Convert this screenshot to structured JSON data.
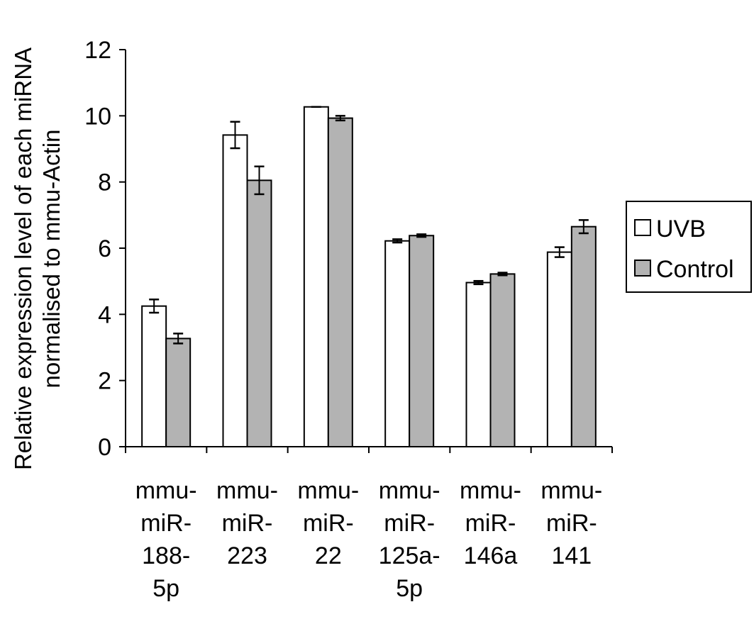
{
  "chart_data": {
    "type": "bar",
    "title": "",
    "xlabel": "",
    "ylabel_lines": [
      "Relative expression level of each miRNA",
      "normalised to mmu-Actin"
    ],
    "ylim": [
      0,
      12
    ],
    "yticks": [
      "0",
      "2",
      "4",
      "6",
      "8",
      "10",
      "12"
    ],
    "grid": false,
    "legend_placement": "right",
    "categories": [
      [
        "mmu-",
        "miR-",
        "188-",
        "5p"
      ],
      [
        "mmu-",
        "miR-",
        "223"
      ],
      [
        "mmu-",
        "miR-",
        "22"
      ],
      [
        "mmu-",
        "miR-",
        "125a-",
        "5p"
      ],
      [
        "mmu-",
        "miR-",
        "146a"
      ],
      [
        "mmu-",
        "miR-",
        "141"
      ]
    ],
    "series": [
      {
        "name": "UVB",
        "color": "#ffffff",
        "values": [
          4.25,
          9.42,
          10.27,
          6.22,
          4.96,
          5.88
        ],
        "errors": [
          0.2,
          0.4,
          0.0,
          0.05,
          0.05,
          0.15
        ]
      },
      {
        "name": "Control",
        "color": "#b3b3b3",
        "values": [
          3.27,
          8.05,
          9.93,
          6.38,
          5.22,
          6.65
        ],
        "errors": [
          0.15,
          0.42,
          0.07,
          0.04,
          0.04,
          0.2
        ]
      }
    ]
  }
}
